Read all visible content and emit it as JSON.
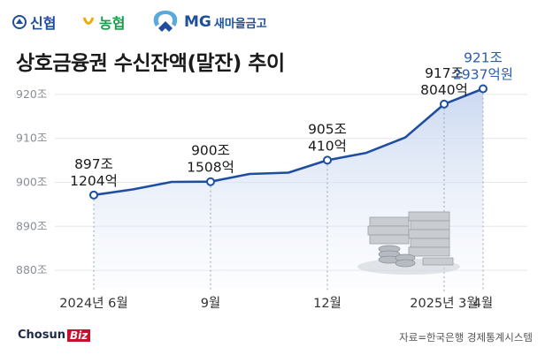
{
  "logos": [
    {
      "name": "신협",
      "color": "#1f4e9c"
    },
    {
      "name": "농협",
      "color": "#1d9a4a"
    },
    {
      "name": "새마을금고",
      "prefix": "MG",
      "color": "#1f4e9c"
    }
  ],
  "title": "상호금융권 수신잔액(말잔) 추이",
  "brand": {
    "main": "Chosun",
    "suffix": "Biz"
  },
  "source": "자료=한국은행 경제통계시스템",
  "chart_data": {
    "type": "area",
    "title": "상호금융권 수신잔액(말잔) 추이",
    "unit": "조",
    "ylim": [
      876,
      925
    ],
    "yticks": [
      {
        "value": 880,
        "label": "880조"
      },
      {
        "value": 890,
        "label": "890조"
      },
      {
        "value": 900,
        "label": "900조"
      },
      {
        "value": 910,
        "label": "910조"
      },
      {
        "value": 920,
        "label": "920조"
      }
    ],
    "x": [
      "2024-06",
      "2024-07",
      "2024-08",
      "2024-09",
      "2024-10",
      "2024-11",
      "2024-12",
      "2025-01",
      "2025-02",
      "2025-03",
      "2025-04"
    ],
    "xticks": [
      {
        "x": "2024-06",
        "label": "2024년 6월"
      },
      {
        "x": "2024-09",
        "label": "9월"
      },
      {
        "x": "2024-12",
        "label": "12월"
      },
      {
        "x": "2025-03",
        "label": "2025년 3월"
      },
      {
        "x": "2025-04",
        "label": "4월"
      }
    ],
    "series": [
      {
        "values": [
          897.12,
          898.4,
          900.1,
          900.15,
          901.9,
          902.2,
          905.04,
          906.7,
          910.2,
          917.8,
          921.29
        ]
      }
    ],
    "annotations": [
      {
        "x": "2024-06",
        "line1": "897조",
        "line2": "1204억"
      },
      {
        "x": "2024-09",
        "line1": "900조",
        "line2": "1508억"
      },
      {
        "x": "2024-12",
        "line1": "905조",
        "line2": "410억"
      },
      {
        "x": "2025-03",
        "line1": "917조",
        "line2": "8040억"
      },
      {
        "x": "2025-04",
        "line1": "921조",
        "line2": "2937억원",
        "highlight": true
      }
    ],
    "line_color": "#1f4ea1",
    "highlight_color": "#2a5db0",
    "grid": true
  }
}
